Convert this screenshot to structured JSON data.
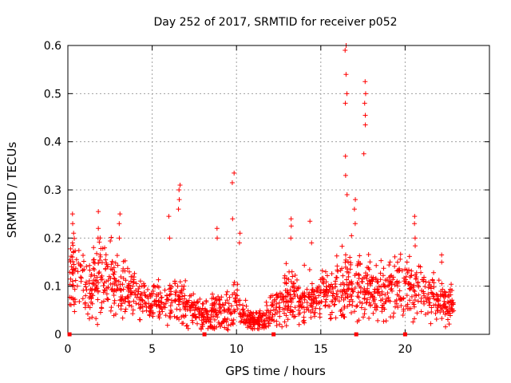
{
  "chart_data": {
    "type": "scatter",
    "title": "Day 252 of 2017, SRMTID for receiver p052",
    "xlabel": "GPS time / hours",
    "ylabel": "SRMTID / TECUs",
    "xlim": [
      0,
      25
    ],
    "ylim": [
      0,
      0.6
    ],
    "xticks": [
      0,
      5,
      10,
      15,
      20
    ],
    "yticks": [
      0,
      0.1,
      0.2,
      0.3,
      0.4,
      0.5,
      0.6
    ],
    "grid": true,
    "marker": "+",
    "color": "#ff0000",
    "gap_marks_x": [
      0.1,
      8.1,
      12.2,
      17.1,
      20.0
    ],
    "envelope": {
      "hours": [
        0.1,
        0.5,
        1,
        1.5,
        2,
        2.5,
        3,
        3.5,
        4,
        4.5,
        5,
        5.5,
        6,
        6.5,
        7,
        7.5,
        8,
        8.5,
        9,
        9.5,
        10,
        10.5,
        11,
        11.5,
        12,
        12.5,
        13,
        13.5,
        14,
        14.5,
        15,
        15.5,
        16,
        16.5,
        17,
        17.5,
        18,
        18.5,
        19,
        19.5,
        20,
        20.5,
        21,
        21.5,
        22,
        22.5,
        22.9
      ],
      "median": [
        0.13,
        0.11,
        0.1,
        0.11,
        0.12,
        0.11,
        0.1,
        0.09,
        0.08,
        0.07,
        0.07,
        0.065,
        0.07,
        0.075,
        0.06,
        0.045,
        0.04,
        0.04,
        0.045,
        0.05,
        0.06,
        0.035,
        0.025,
        0.03,
        0.05,
        0.06,
        0.07,
        0.07,
        0.065,
        0.07,
        0.08,
        0.085,
        0.09,
        0.1,
        0.1,
        0.095,
        0.09,
        0.085,
        0.09,
        0.1,
        0.1,
        0.11,
        0.09,
        0.08,
        0.075,
        0.065,
        0.06
      ],
      "spread": [
        0.05,
        0.05,
        0.05,
        0.05,
        0.06,
        0.05,
        0.05,
        0.04,
        0.035,
        0.025,
        0.025,
        0.03,
        0.03,
        0.04,
        0.03,
        0.025,
        0.025,
        0.025,
        0.03,
        0.03,
        0.035,
        0.02,
        0.012,
        0.015,
        0.025,
        0.03,
        0.035,
        0.035,
        0.03,
        0.035,
        0.035,
        0.04,
        0.045,
        0.05,
        0.05,
        0.045,
        0.045,
        0.04,
        0.045,
        0.045,
        0.05,
        0.05,
        0.04,
        0.035,
        0.035,
        0.03,
        0.025
      ]
    },
    "spikes": [
      {
        "x": 0.3,
        "y": [
          0.17,
          0.19,
          0.21,
          0.23,
          0.25
        ]
      },
      {
        "x": 1.8,
        "y": [
          0.2,
          0.22,
          0.255
        ]
      },
      {
        "x": 3.1,
        "y": [
          0.2,
          0.23,
          0.25
        ]
      },
      {
        "x": 6.0,
        "y": [
          0.2,
          0.245
        ]
      },
      {
        "x": 6.6,
        "y": [
          0.26,
          0.28,
          0.3,
          0.31
        ]
      },
      {
        "x": 8.8,
        "y": [
          0.2,
          0.22
        ]
      },
      {
        "x": 9.8,
        "y": [
          0.24,
          0.315,
          0.335
        ]
      },
      {
        "x": 10.2,
        "y": [
          0.19,
          0.21
        ]
      },
      {
        "x": 13.2,
        "y": [
          0.2,
          0.225,
          0.24
        ]
      },
      {
        "x": 14.4,
        "y": [
          0.19,
          0.235
        ]
      },
      {
        "x": 16.5,
        "y": [
          0.29,
          0.33,
          0.37,
          0.48,
          0.5,
          0.54,
          0.59,
          0.6
        ]
      },
      {
        "x": 17.0,
        "y": [
          0.23,
          0.26,
          0.28
        ]
      },
      {
        "x": 17.6,
        "y": [
          0.375,
          0.435,
          0.455,
          0.48,
          0.5,
          0.525
        ]
      },
      {
        "x": 20.6,
        "y": [
          0.2,
          0.23,
          0.245
        ]
      },
      {
        "x": 22.2,
        "y": [
          0.15,
          0.165
        ]
      }
    ]
  }
}
